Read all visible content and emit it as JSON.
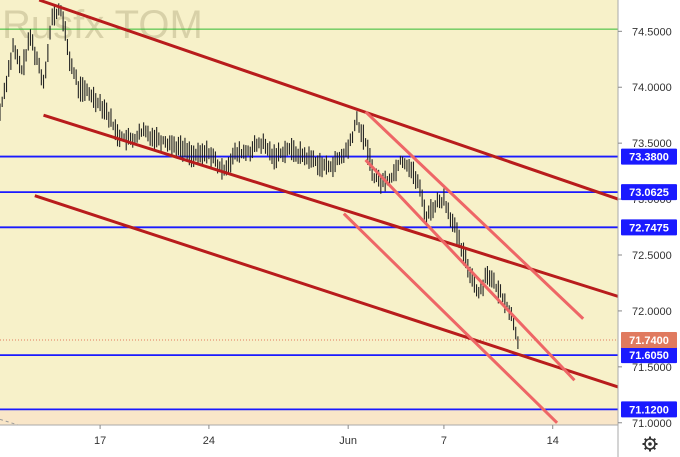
{
  "watermark": "Rusfx TOM",
  "settings_icon": "gear-icon",
  "colors": {
    "background": "#f7f1c9",
    "axis_background": "#ffffff",
    "candle": "#222222",
    "level_line": "#1a1aff",
    "channel_main": "#b81c1c",
    "channel_light": "#ee6666",
    "price_badge": "#e07a5f",
    "green_line": "#33bb33",
    "bottom_zone": "#f9e6c8"
  },
  "chart_data": {
    "type": "line",
    "instrument": "Rusfx TOM",
    "x_ticks": [
      {
        "label": "17",
        "bar": 23
      },
      {
        "label": "24",
        "bar": 48
      },
      {
        "label": "Jun",
        "bar": 80
      },
      {
        "label": "7",
        "bar": 102
      },
      {
        "label": "14",
        "bar": 127
      }
    ],
    "x_range": [
      0,
      142
    ],
    "y_ticks": [
      74.5,
      74.0,
      73.5,
      73.0,
      72.5,
      72.0,
      71.5,
      71.0
    ],
    "y_range": [
      70.98,
      74.78
    ],
    "price_path": [
      [
        0,
        73.78
      ],
      [
        3,
        74.35
      ],
      [
        5,
        74.15
      ],
      [
        7,
        74.45
      ],
      [
        10,
        74.05
      ],
      [
        12,
        74.62
      ],
      [
        14,
        74.7
      ],
      [
        16,
        74.25
      ],
      [
        18,
        74.0
      ],
      [
        21,
        73.93
      ],
      [
        24,
        73.82
      ],
      [
        27,
        73.58
      ],
      [
        30,
        73.52
      ],
      [
        33,
        73.6
      ],
      [
        36,
        73.55
      ],
      [
        39,
        73.5
      ],
      [
        42,
        73.45
      ],
      [
        45,
        73.38
      ],
      [
        48,
        73.42
      ],
      [
        51,
        73.25
      ],
      [
        54,
        73.4
      ],
      [
        57,
        73.42
      ],
      [
        60,
        73.5
      ],
      [
        63,
        73.38
      ],
      [
        66,
        73.45
      ],
      [
        69,
        73.4
      ],
      [
        72,
        73.35
      ],
      [
        75,
        73.28
      ],
      [
        78,
        73.35
      ],
      [
        80,
        73.45
      ],
      [
        82,
        73.7
      ],
      [
        84,
        73.5
      ],
      [
        86,
        73.2
      ],
      [
        88,
        73.15
      ],
      [
        90,
        73.2
      ],
      [
        92,
        73.35
      ],
      [
        94,
        73.3
      ],
      [
        96,
        73.15
      ],
      [
        98,
        72.85
      ],
      [
        100,
        72.95
      ],
      [
        102,
        73.0
      ],
      [
        104,
        72.8
      ],
      [
        106,
        72.55
      ],
      [
        108,
        72.35
      ],
      [
        110,
        72.15
      ],
      [
        112,
        72.35
      ],
      [
        114,
        72.2
      ],
      [
        116,
        72.1
      ],
      [
        118,
        71.9
      ],
      [
        119,
        71.74
      ]
    ],
    "levels": [
      {
        "label": "73.3800",
        "value": 73.38
      },
      {
        "label": "73.0625",
        "value": 73.0625
      },
      {
        "label": "72.7475",
        "value": 72.7475
      },
      {
        "label": "71.6050",
        "value": 71.605
      },
      {
        "label": "71.1200",
        "value": 71.12
      }
    ],
    "last_price": {
      "label": "71.7400",
      "value": 71.74
    },
    "green_line_value": 74.52,
    "channel_lines_main": [
      {
        "from": [
          9,
          74.78
        ],
        "to": [
          142,
          73.0
        ]
      },
      {
        "from": [
          10,
          73.75
        ],
        "to": [
          142,
          72.13
        ]
      },
      {
        "from": [
          8,
          73.03
        ],
        "to": [
          142,
          71.32
        ]
      }
    ],
    "channel_lines_light": [
      {
        "from": [
          84,
          73.78
        ],
        "to": [
          134,
          71.93
        ]
      },
      {
        "from": [
          84,
          73.35
        ],
        "to": [
          132,
          71.38
        ]
      },
      {
        "from": [
          79,
          72.87
        ],
        "to": [
          128,
          71.0
        ]
      }
    ]
  }
}
